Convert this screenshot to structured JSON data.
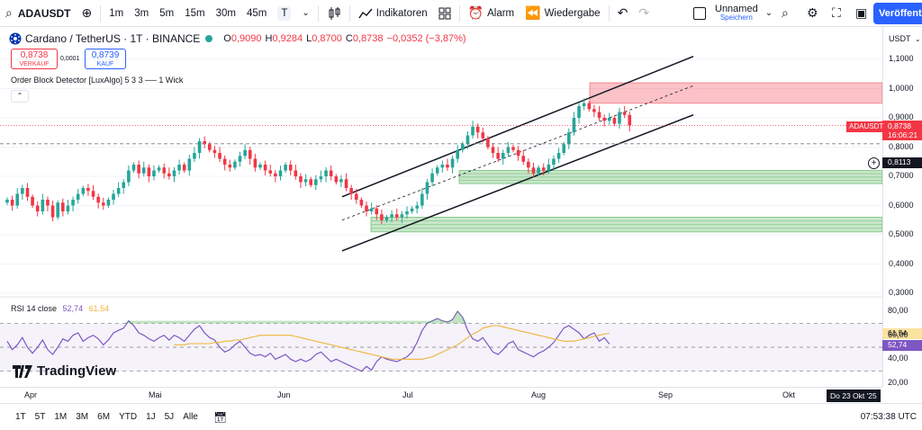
{
  "toolbar": {
    "symbol": "ADAUSDT",
    "intervals": [
      "1m",
      "3m",
      "5m",
      "15m",
      "30m",
      "45m",
      "T"
    ],
    "indicators_label": "Indikatoren",
    "alarm_label": "Alarm",
    "replay_label": "Wiedergabe",
    "layout_name": "Unnamed",
    "layout_status": "Speichern",
    "publish_label": "Veröffent"
  },
  "legend": {
    "title": "Cardano / TetherUS · 1T · BINANCE",
    "open_label": "O",
    "open": "0,9090",
    "high_label": "H",
    "high": "0,9284",
    "low_label": "L",
    "low": "0,8700",
    "close_label": "C",
    "close": "0,8738",
    "change": "−0,0352 (−3,87%)",
    "sell_price": "0,8738",
    "sell_label": "VERKAUF",
    "spread": "0,0001",
    "buy_price": "0,8739",
    "buy_label": "KAUF",
    "indicator": "Order Block Detector [LuxAlgo] 5 3 3 ── 1 Wick"
  },
  "rsi": {
    "label": "RSI 14 close",
    "value": "52,74",
    "ma": "61,54",
    "scale": [
      "80,00",
      "60,00",
      "40,00",
      "20,00"
    ]
  },
  "price_scale": {
    "currency": "USDT",
    "ticks": [
      "1,1000",
      "1,0000",
      "0,9000",
      "0,8000",
      "0,7000",
      "0,6000",
      "0,5000",
      "0,4000",
      "0,3000"
    ],
    "last_symbol": "ADAUSDT",
    "last_price": "0,8738",
    "countdown": "16:06:21",
    "cursor_price": "0,8113"
  },
  "time_axis": {
    "labels": [
      "Apr",
      "Mai",
      "Jun",
      "Jul",
      "Aug",
      "Sep",
      "Okt"
    ],
    "cursor_date": "Do 23 Okt '25"
  },
  "bottom_bar": {
    "ranges": [
      "1T",
      "5T",
      "1M",
      "3M",
      "6M",
      "YTD",
      "1J",
      "5J",
      "Alle"
    ],
    "clock": "07:53:38 UTC"
  },
  "logo": "TradingView",
  "colors": {
    "up": "#26a69a",
    "down": "#f23645",
    "accent": "#2962ff",
    "rsi_line": "#7e57c2",
    "rsi_ma": "#f0b43a",
    "bullish_block": "#4caf50",
    "bearish_block": "#f23645"
  },
  "chart_data": {
    "type": "candlestick",
    "symbol": "ADAUSDT",
    "x_labels": [
      "Apr",
      "Mai",
      "Jun",
      "Jul",
      "Aug",
      "Sep",
      "Okt"
    ],
    "ylim": [
      0.3,
      1.1
    ],
    "closes": [
      0.62,
      0.6,
      0.64,
      0.66,
      0.63,
      0.6,
      0.58,
      0.62,
      0.6,
      0.56,
      0.61,
      0.58,
      0.6,
      0.62,
      0.64,
      0.66,
      0.65,
      0.63,
      0.61,
      0.6,
      0.62,
      0.64,
      0.66,
      0.68,
      0.72,
      0.74,
      0.71,
      0.73,
      0.7,
      0.72,
      0.73,
      0.71,
      0.7,
      0.72,
      0.74,
      0.72,
      0.76,
      0.78,
      0.82,
      0.81,
      0.79,
      0.78,
      0.76,
      0.74,
      0.73,
      0.75,
      0.77,
      0.79,
      0.76,
      0.73,
      0.74,
      0.72,
      0.71,
      0.7,
      0.72,
      0.74,
      0.72,
      0.7,
      0.68,
      0.69,
      0.67,
      0.69,
      0.7,
      0.72,
      0.7,
      0.68,
      0.69,
      0.66,
      0.64,
      0.62,
      0.6,
      0.58,
      0.59,
      0.57,
      0.55,
      0.56,
      0.57,
      0.56,
      0.57,
      0.58,
      0.59,
      0.6,
      0.64,
      0.68,
      0.71,
      0.73,
      0.74,
      0.73,
      0.76,
      0.79,
      0.81,
      0.84,
      0.87,
      0.85,
      0.83,
      0.8,
      0.78,
      0.76,
      0.78,
      0.8,
      0.79,
      0.77,
      0.75,
      0.73,
      0.71,
      0.73,
      0.72,
      0.74,
      0.76,
      0.78,
      0.81,
      0.85,
      0.9,
      0.94,
      0.95,
      0.93,
      0.92,
      0.9,
      0.89,
      0.9,
      0.88,
      0.92,
      0.91,
      0.8738
    ],
    "bullish_order_blocks": [
      [
        0.675,
        0.72
      ],
      [
        0.51,
        0.56
      ]
    ],
    "bearish_order_blocks": [
      [
        0.95,
        1.02
      ]
    ],
    "channel": {
      "upper": [
        0.63,
        1.11
      ],
      "middle": [
        0.55,
        1.01
      ],
      "lower": [
        0.445,
        0.91
      ]
    },
    "rsi": [
      55,
      48,
      52,
      58,
      50,
      45,
      50,
      56,
      48,
      44,
      50,
      57,
      55,
      60,
      62,
      55,
      58,
      60,
      57,
      52,
      56,
      62,
      64,
      66,
      72,
      68,
      62,
      60,
      57,
      55,
      58,
      60,
      56,
      60,
      58,
      55,
      60,
      65,
      68,
      62,
      58,
      56,
      50,
      46,
      48,
      52,
      55,
      50,
      45,
      43,
      44,
      42,
      45,
      40,
      42,
      44,
      40,
      38,
      40,
      38,
      40,
      44,
      46,
      42,
      38,
      40,
      38,
      36,
      34,
      32,
      30,
      34,
      31,
      38,
      42,
      40,
      39,
      38,
      40,
      42,
      46,
      54,
      64,
      70,
      72,
      74,
      72,
      71,
      73,
      80,
      75,
      64,
      57,
      55,
      58,
      52,
      46,
      44,
      48,
      53,
      55,
      48,
      46,
      44,
      42,
      45,
      47,
      50,
      54,
      60,
      66,
      68,
      65,
      62,
      57,
      60,
      62,
      55,
      58,
      52.74
    ],
    "rsi_ma": [
      52,
      52,
      52,
      53,
      53,
      53,
      53,
      53,
      54,
      54,
      55,
      55,
      56,
      56,
      57,
      58,
      59,
      60,
      60,
      60,
      60,
      60,
      60,
      60,
      59,
      58,
      57,
      56,
      55,
      54,
      53,
      52,
      51,
      50,
      49,
      48,
      47,
      46,
      45,
      44,
      43,
      42,
      41,
      40,
      40,
      40,
      40,
      40,
      40,
      40,
      41,
      42,
      44,
      46,
      48,
      50,
      52,
      55,
      58,
      61,
      63,
      66,
      67,
      68,
      68,
      67,
      66,
      65,
      64,
      63,
      62,
      61,
      60,
      59,
      58,
      57,
      56,
      55,
      55,
      55,
      56,
      57,
      58,
      59,
      60,
      61,
      61.54
    ]
  }
}
